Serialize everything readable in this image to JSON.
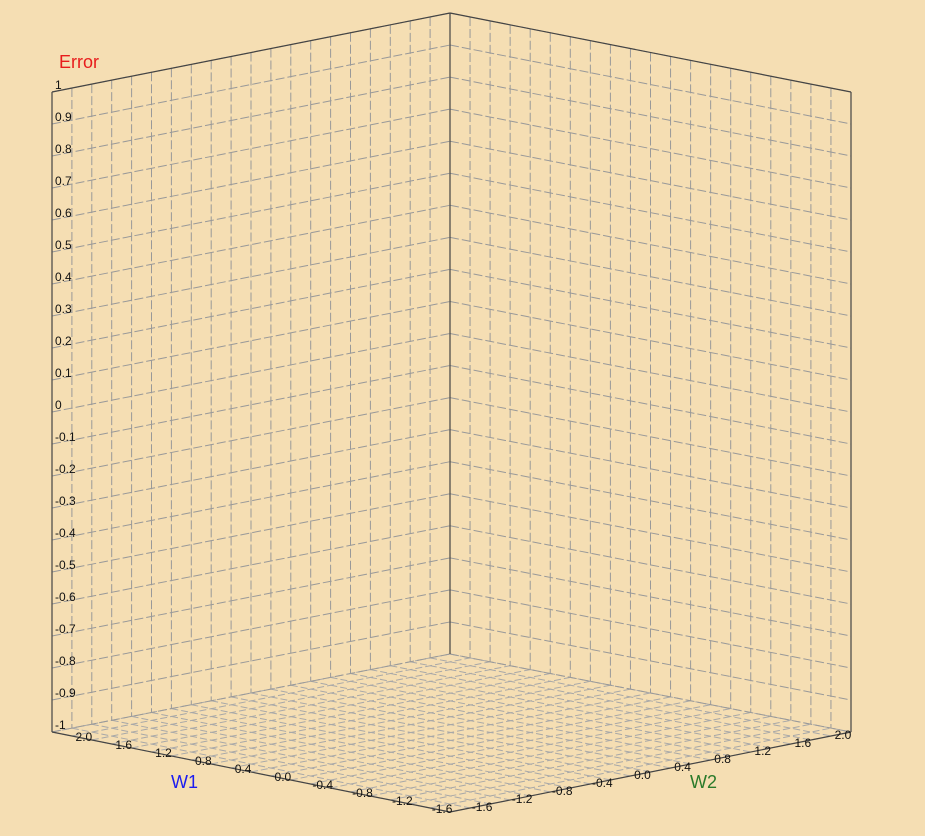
{
  "chart_data": {
    "type": "surface3d",
    "title": "",
    "axes": {
      "z": {
        "label": "Error",
        "color": "#e81c1c",
        "range": [
          -1,
          1
        ],
        "step": 0.1,
        "ticks": [
          "1",
          "0.9",
          "0.8",
          "0.7",
          "0.6",
          "0.5",
          "0.4",
          "0.3",
          "0.2",
          "0.1",
          "0",
          "-0.1",
          "-0.2",
          "-0.3",
          "-0.4",
          "-0.5",
          "-0.6",
          "-0.7",
          "-0.8",
          "-0.9",
          "-1"
        ]
      },
      "x": {
        "label": "W1",
        "color": "#1c1cf0",
        "range": [
          -2,
          2
        ],
        "ticks": [
          "2.0",
          "1.6",
          "1.2",
          "0.8",
          "0.4",
          "0.0",
          "-0.4",
          "-0.8",
          "-1.2",
          "-1.6"
        ]
      },
      "y": {
        "label": "W2",
        "color": "#2a7a2a",
        "range": [
          -2,
          2
        ],
        "ticks": [
          "-1.6",
          "-1.2",
          "-0.8",
          "-0.4",
          "0.0",
          "0.4",
          "0.8",
          "1.2",
          "1.6",
          "2.0"
        ]
      }
    },
    "grid": true,
    "series": []
  }
}
